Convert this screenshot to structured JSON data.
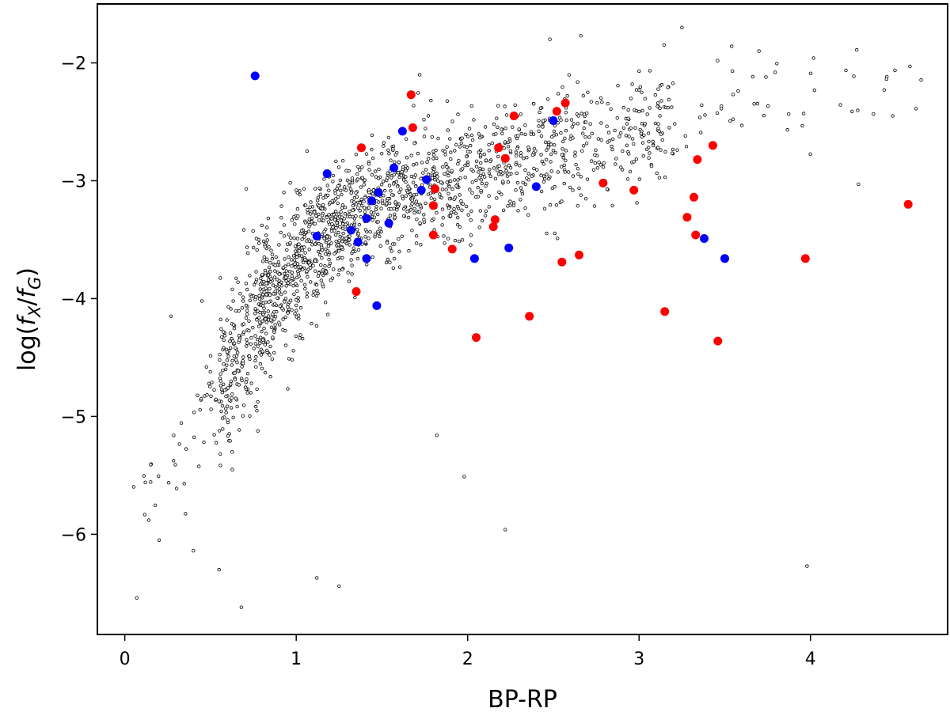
{
  "chart_data": {
    "type": "scatter",
    "title": "",
    "xlabel": "BP-RP",
    "ylabel": "log(f_X/f_G)",
    "xlim": [
      -0.16,
      4.8
    ],
    "ylim": [
      -6.85,
      -1.5
    ],
    "xticks": [
      0,
      1,
      2,
      3,
      4
    ],
    "yticks": [
      -2,
      -3,
      -4,
      -5,
      -6
    ],
    "xtick_labels": [
      "0",
      "1",
      "2",
      "3",
      "4"
    ],
    "ytick_labels": [
      "−2",
      "−3",
      "−4",
      "−5",
      "−6"
    ],
    "grid": false,
    "legend": "none",
    "background_cloud": {
      "marker": "small open circle",
      "color": "#000000",
      "approx_count": 1800,
      "envelope": [
        [
          0.2,
          -5.6,
          0.35
        ],
        [
          0.4,
          -5.2,
          0.45
        ],
        [
          0.6,
          -4.6,
          0.6
        ],
        [
          0.8,
          -4.1,
          0.6
        ],
        [
          1.0,
          -3.7,
          0.55
        ],
        [
          1.2,
          -3.4,
          0.5
        ],
        [
          1.5,
          -3.2,
          0.45
        ],
        [
          1.8,
          -3.05,
          0.45
        ],
        [
          2.1,
          -2.9,
          0.45
        ],
        [
          2.4,
          -2.75,
          0.45
        ],
        [
          2.7,
          -2.65,
          0.45
        ],
        [
          3.0,
          -2.55,
          0.45
        ],
        [
          3.3,
          -2.45,
          0.45
        ],
        [
          3.6,
          -2.3,
          0.4
        ],
        [
          4.0,
          -2.3,
          0.4
        ],
        [
          4.5,
          -2.2,
          0.35
        ]
      ],
      "sample": [
        [
          0.07,
          -6.54
        ],
        [
          0.12,
          -5.56
        ],
        [
          0.14,
          -5.88
        ],
        [
          0.2,
          -6.05
        ],
        [
          0.27,
          -4.15
        ],
        [
          0.4,
          -6.14
        ],
        [
          0.45,
          -4.02
        ],
        [
          0.55,
          -6.3
        ],
        [
          3.98,
          -6.27
        ],
        [
          1.25,
          -6.44
        ],
        [
          1.12,
          -6.37
        ],
        [
          0.68,
          -6.62
        ],
        [
          1.82,
          -5.16
        ],
        [
          1.98,
          -5.51
        ],
        [
          2.22,
          -5.96
        ],
        [
          3.27,
          -2.62
        ],
        [
          3.36,
          -2.59
        ],
        [
          3.54,
          -1.86
        ],
        [
          3.74,
          -2.12
        ],
        [
          3.96,
          -2.43
        ],
        [
          4.27,
          -1.89
        ],
        [
          4.28,
          -3.03
        ],
        [
          4.43,
          -2.23
        ],
        [
          4.58,
          -2.03
        ],
        [
          4.48,
          -2.45
        ],
        [
          3.25,
          -1.7
        ],
        [
          2.66,
          -1.77
        ],
        [
          2.48,
          -1.8
        ],
        [
          1.58,
          -2.78
        ],
        [
          1.72,
          -2.1
        ]
      ]
    },
    "series": [
      {
        "color": "#0000ff",
        "points": [
          [
            0.76,
            -2.11
          ],
          [
            1.62,
            -2.58
          ],
          [
            2.5,
            -2.49
          ],
          [
            1.18,
            -2.94
          ],
          [
            1.57,
            -2.89
          ],
          [
            1.76,
            -2.99
          ],
          [
            1.48,
            -3.1
          ],
          [
            1.44,
            -3.17
          ],
          [
            1.73,
            -3.08
          ],
          [
            2.4,
            -3.05
          ],
          [
            1.54,
            -3.36
          ],
          [
            1.41,
            -3.32
          ],
          [
            1.32,
            -3.42
          ],
          [
            1.12,
            -3.47
          ],
          [
            1.36,
            -3.52
          ],
          [
            1.41,
            -3.66
          ],
          [
            2.04,
            -3.66
          ],
          [
            2.24,
            -3.57
          ],
          [
            3.38,
            -3.49
          ],
          [
            3.5,
            -3.66
          ],
          [
            1.47,
            -4.06
          ]
        ]
      },
      {
        "color": "#ff0000",
        "points": [
          [
            1.67,
            -2.27
          ],
          [
            1.68,
            -2.55
          ],
          [
            1.38,
            -2.72
          ],
          [
            2.57,
            -2.34
          ],
          [
            2.52,
            -2.41
          ],
          [
            2.27,
            -2.45
          ],
          [
            2.18,
            -2.72
          ],
          [
            2.22,
            -2.81
          ],
          [
            3.43,
            -2.7
          ],
          [
            3.34,
            -2.82
          ],
          [
            1.81,
            -3.07
          ],
          [
            1.8,
            -3.21
          ],
          [
            2.79,
            -3.02
          ],
          [
            2.97,
            -3.08
          ],
          [
            3.32,
            -3.14
          ],
          [
            3.28,
            -3.31
          ],
          [
            2.16,
            -3.33
          ],
          [
            2.15,
            -3.39
          ],
          [
            1.8,
            -3.46
          ],
          [
            3.33,
            -3.46
          ],
          [
            1.91,
            -3.58
          ],
          [
            2.65,
            -3.63
          ],
          [
            2.55,
            -3.69
          ],
          [
            3.97,
            -3.66
          ],
          [
            4.57,
            -3.2
          ],
          [
            1.35,
            -3.94
          ],
          [
            2.36,
            -4.15
          ],
          [
            3.15,
            -4.11
          ],
          [
            2.05,
            -4.33
          ],
          [
            3.46,
            -4.36
          ]
        ]
      }
    ]
  }
}
